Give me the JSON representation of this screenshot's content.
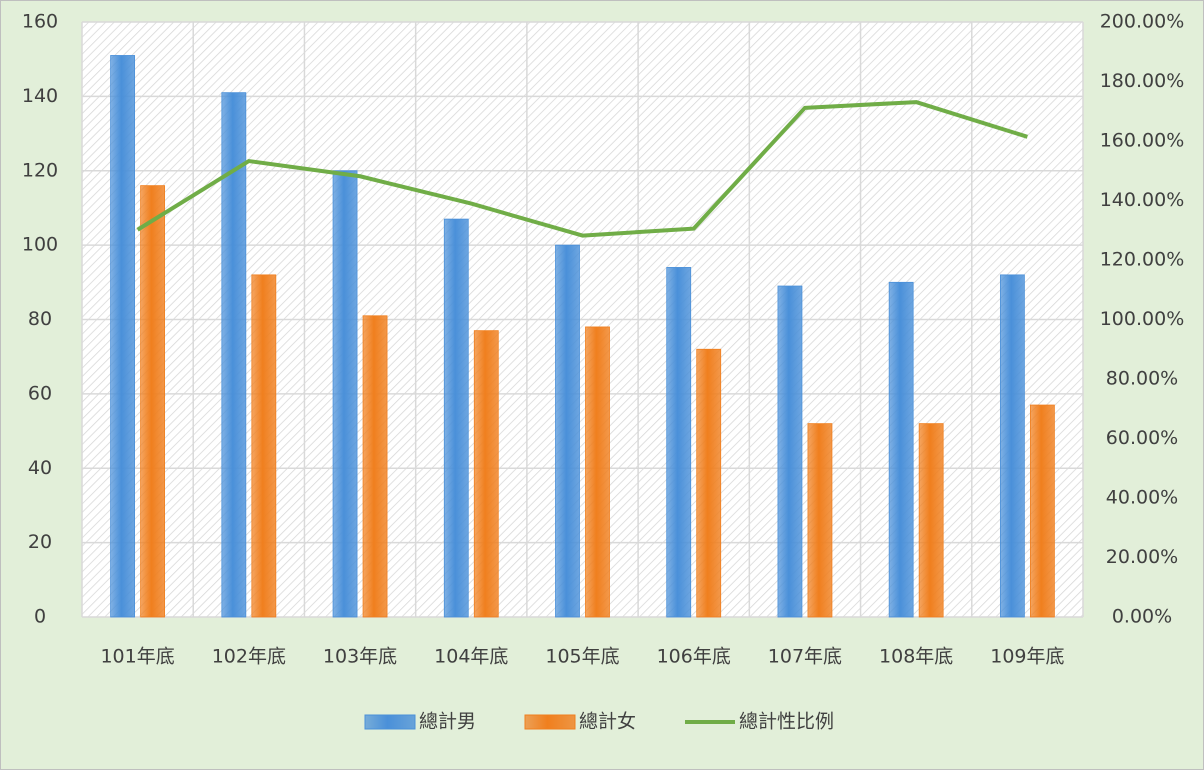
{
  "chart_data": {
    "type": "bar-line",
    "categories": [
      "101年底",
      "102年底",
      "103年底",
      "104年底",
      "105年底",
      "106年底",
      "107年底",
      "108年底",
      "109年底"
    ],
    "series": [
      {
        "name": "總計男",
        "type": "bar",
        "color": "#4a90d9",
        "values": [
          151,
          141,
          120,
          107,
          100,
          94,
          89,
          90,
          92
        ]
      },
      {
        "name": "總計女",
        "type": "bar",
        "color": "#f07f1e",
        "values": [
          116,
          92,
          81,
          77,
          78,
          72,
          52,
          52,
          57
        ]
      },
      {
        "name": "總計性比例",
        "type": "line",
        "axis": "y2",
        "color": "#70ad47",
        "values": [
          130.17,
          153.26,
          148.15,
          138.96,
          128.21,
          130.56,
          171.15,
          173.08,
          161.4
        ]
      }
    ],
    "ylim": [
      0,
      160
    ],
    "yticks": [
      0,
      20,
      40,
      60,
      80,
      100,
      120,
      140,
      160
    ],
    "y2lim": [
      0,
      200
    ],
    "y2ticks": [
      {
        "value": 0,
        "label": "0.00%"
      },
      {
        "value": 20,
        "label": "20.00%"
      },
      {
        "value": 40,
        "label": "40.00%"
      },
      {
        "value": 60,
        "label": "60.00%"
      },
      {
        "value": 80,
        "label": "80.00%"
      },
      {
        "value": 100,
        "label": "100.00%"
      },
      {
        "value": 120,
        "label": "120.00%"
      },
      {
        "value": 140,
        "label": "140.00%"
      },
      {
        "value": 160,
        "label": "160.00%"
      },
      {
        "value": 180,
        "label": "180.00%"
      },
      {
        "value": 200,
        "label": "200.00%"
      }
    ],
    "grid": true,
    "legend": "bottom"
  }
}
